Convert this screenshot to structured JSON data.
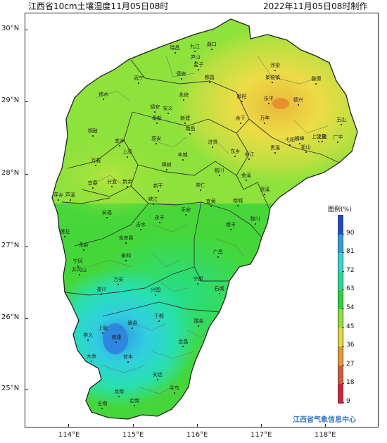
{
  "header": {
    "title_left": "江西省10cm土壤湿度11月05日08时",
    "title_right": "2022年11月05日08时制作"
  },
  "map": {
    "lat_labels": [
      "30°N",
      "29°N",
      "28°N",
      "27°N",
      "26°N",
      "25°N"
    ],
    "lon_labels": [
      "114°E",
      "115°E",
      "116°E",
      "117°E",
      "118°E"
    ],
    "credit": "江西省气象信息中心",
    "cities": [
      {
        "name": "九江",
        "lon": 115.97,
        "lat": 29.7
      },
      {
        "name": "湖口",
        "lon": 116.23,
        "lat": 29.73
      },
      {
        "name": "瑞昌",
        "lon": 115.66,
        "lat": 29.68
      },
      {
        "name": "德安",
        "lon": 115.76,
        "lat": 29.32
      },
      {
        "name": "武宁",
        "lon": 115.1,
        "lat": 29.26
      },
      {
        "name": "修水",
        "lon": 114.55,
        "lat": 29.03
      },
      {
        "name": "永修",
        "lon": 115.8,
        "lat": 29.02
      },
      {
        "name": "星子",
        "lon": 116.03,
        "lat": 29.44
      },
      {
        "name": "庐山",
        "lon": 115.98,
        "lat": 29.55
      },
      {
        "name": "都昌",
        "lon": 116.2,
        "lat": 29.27
      },
      {
        "name": "浮梁",
        "lon": 117.22,
        "lat": 29.43
      },
      {
        "name": "婺源",
        "lon": 117.86,
        "lat": 29.25
      },
      {
        "name": "景德镇",
        "lon": 117.18,
        "lat": 29.27
      },
      {
        "name": "鄱阳",
        "lon": 116.7,
        "lat": 29.0
      },
      {
        "name": "乐平",
        "lon": 117.12,
        "lat": 28.97
      },
      {
        "name": "德兴",
        "lon": 117.58,
        "lat": 28.95
      },
      {
        "name": "安义",
        "lon": 115.55,
        "lat": 28.84
      },
      {
        "name": "靖安",
        "lon": 115.35,
        "lat": 28.86
      },
      {
        "name": "奉新",
        "lon": 115.38,
        "lat": 28.7
      },
      {
        "name": "新建",
        "lon": 115.82,
        "lat": 28.7
      },
      {
        "name": "南昌",
        "lon": 115.9,
        "lat": 28.55
      },
      {
        "name": "余干",
        "lon": 116.68,
        "lat": 28.7
      },
      {
        "name": "万年",
        "lon": 117.06,
        "lat": 28.7
      },
      {
        "name": "上饶县",
        "lon": 117.9,
        "lat": 28.45
      },
      {
        "name": "玉山",
        "lon": 118.25,
        "lat": 28.68
      },
      {
        "name": "铜鼓",
        "lon": 114.38,
        "lat": 28.52
      },
      {
        "name": "宜丰",
        "lon": 114.8,
        "lat": 28.39
      },
      {
        "name": "高安",
        "lon": 115.37,
        "lat": 28.42
      },
      {
        "name": "进贤",
        "lon": 116.25,
        "lat": 28.37
      },
      {
        "name": "东乡",
        "lon": 116.6,
        "lat": 28.24
      },
      {
        "name": "余江",
        "lon": 116.82,
        "lat": 28.2
      },
      {
        "name": "弋阳",
        "lon": 117.45,
        "lat": 28.4
      },
      {
        "name": "上饶",
        "lon": 117.95,
        "lat": 28.45
      },
      {
        "name": "横峰",
        "lon": 117.6,
        "lat": 28.42
      },
      {
        "name": "铅山",
        "lon": 117.7,
        "lat": 28.3
      },
      {
        "name": "广丰",
        "lon": 118.2,
        "lat": 28.44
      },
      {
        "name": "上高",
        "lon": 114.92,
        "lat": 28.23
      },
      {
        "name": "万载",
        "lon": 114.43,
        "lat": 28.11
      },
      {
        "name": "丰城",
        "lon": 115.78,
        "lat": 28.19
      },
      {
        "name": "樟树",
        "lon": 115.53,
        "lat": 28.05
      },
      {
        "name": "临川",
        "lon": 116.35,
        "lat": 27.98
      },
      {
        "name": "金溪",
        "lon": 116.77,
        "lat": 27.91
      },
      {
        "name": "贵溪",
        "lon": 117.22,
        "lat": 28.29
      },
      {
        "name": "宜春",
        "lon": 114.38,
        "lat": 27.8
      },
      {
        "name": "分宜",
        "lon": 114.68,
        "lat": 27.82
      },
      {
        "name": "新余",
        "lon": 114.92,
        "lat": 27.82
      },
      {
        "name": "新干",
        "lon": 115.4,
        "lat": 27.76
      },
      {
        "name": "崇仁",
        "lon": 116.06,
        "lat": 27.77
      },
      {
        "name": "资溪",
        "lon": 117.06,
        "lat": 27.71
      },
      {
        "name": "萍乡",
        "lon": 113.85,
        "lat": 27.63
      },
      {
        "name": "芦溪",
        "lon": 114.03,
        "lat": 27.63
      },
      {
        "name": "峡江",
        "lon": 115.32,
        "lat": 27.58
      },
      {
        "name": "宜黄",
        "lon": 116.22,
        "lat": 27.55
      },
      {
        "name": "南城",
        "lon": 116.64,
        "lat": 27.56
      },
      {
        "name": "黎川",
        "lon": 116.91,
        "lat": 27.3
      },
      {
        "name": "安福",
        "lon": 114.6,
        "lat": 27.39
      },
      {
        "name": "永丰",
        "lon": 115.42,
        "lat": 27.32
      },
      {
        "name": "乐安",
        "lon": 115.83,
        "lat": 27.43
      },
      {
        "name": "吉水",
        "lon": 115.13,
        "lat": 27.22
      },
      {
        "name": "南丰",
        "lon": 116.53,
        "lat": 27.22
      },
      {
        "name": "莲花",
        "lon": 113.95,
        "lat": 27.13
      },
      {
        "name": "吉安县",
        "lon": 114.9,
        "lat": 27.04
      },
      {
        "name": "永新",
        "lon": 114.24,
        "lat": 26.94
      },
      {
        "name": "广昌",
        "lon": 116.33,
        "lat": 26.84
      },
      {
        "name": "宁冈",
        "lon": 114.15,
        "lat": 26.72
      },
      {
        "name": "井冈山",
        "lon": 114.17,
        "lat": 26.6
      },
      {
        "name": "泰和",
        "lon": 114.9,
        "lat": 26.79
      },
      {
        "name": "石城",
        "lon": 116.35,
        "lat": 26.33
      },
      {
        "name": "宁都",
        "lon": 116.02,
        "lat": 26.47
      },
      {
        "name": "万安",
        "lon": 114.78,
        "lat": 26.46
      },
      {
        "name": "遂川",
        "lon": 114.52,
        "lat": 26.32
      },
      {
        "name": "兴国",
        "lon": 115.36,
        "lat": 26.31
      },
      {
        "name": "于都",
        "lon": 115.41,
        "lat": 25.95
      },
      {
        "name": "赣县",
        "lon": 115.0,
        "lat": 25.86
      },
      {
        "name": "瑞金",
        "lon": 116.03,
        "lat": 25.88
      },
      {
        "name": "上犹",
        "lon": 114.54,
        "lat": 25.79
      },
      {
        "name": "南康",
        "lon": 114.75,
        "lat": 25.66
      },
      {
        "name": "崇义",
        "lon": 114.31,
        "lat": 25.69
      },
      {
        "name": "大余",
        "lon": 114.36,
        "lat": 25.4
      },
      {
        "name": "信丰",
        "lon": 114.93,
        "lat": 25.39
      },
      {
        "name": "会昌",
        "lon": 115.79,
        "lat": 25.6
      },
      {
        "name": "安远",
        "lon": 115.39,
        "lat": 25.14
      },
      {
        "name": "寻乌",
        "lon": 115.65,
        "lat": 24.96
      },
      {
        "name": "龙南",
        "lon": 114.79,
        "lat": 24.91
      },
      {
        "name": "定南",
        "lon": 115.03,
        "lat": 24.78
      },
      {
        "name": "全南",
        "lon": 114.53,
        "lat": 24.74
      }
    ]
  },
  "legend": {
    "title": "图例(%)",
    "labels": [
      "90",
      "81",
      "72",
      "63",
      "54",
      "45",
      "36",
      "27",
      "18",
      "9"
    ],
    "colors": [
      "#1f48c8",
      "#2e9ce0",
      "#30d8d8",
      "#20e090",
      "#28d63a",
      "#8ee23a",
      "#e8dc3c",
      "#e89a30",
      "#d85a3a",
      "#d8203a"
    ]
  }
}
